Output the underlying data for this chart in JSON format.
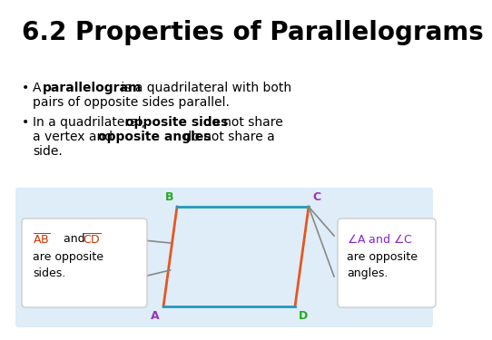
{
  "title": "6.2 Properties of Parallelograms",
  "title_fontsize": 20,
  "background_color": "#ffffff",
  "diagram_bg": "#deedf7",
  "para_stroke_red": "#e85520",
  "para_stroke_blue": "#2299bb",
  "vertex_B_color": "#22aa22",
  "vertex_C_color": "#9933bb",
  "vertex_A_color": "#9933bb",
  "vertex_D_color": "#22aa22",
  "left_text_color": "#cc3300",
  "right_text_color": "#8822cc",
  "arrow_line_color": "#888888",
  "box_edge_color": "#cccccc",
  "box_face_color": "#ffffff",
  "bullet_fontsize": 10,
  "label_fontsize": 9
}
